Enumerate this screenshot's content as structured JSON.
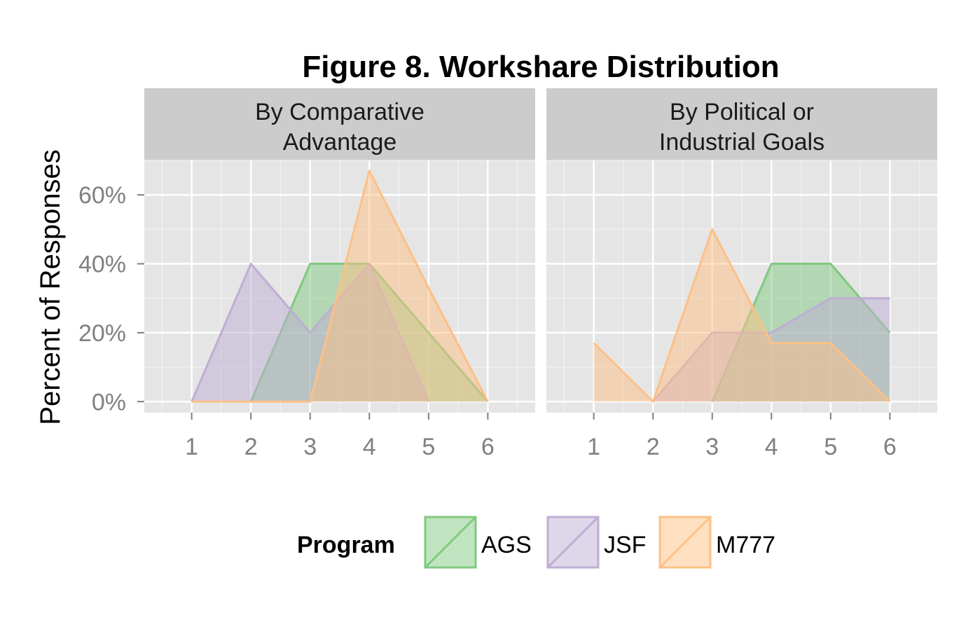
{
  "chart_data": {
    "type": "area",
    "title": "Figure 8. Workshare Distribution",
    "ylabel": "Percent of Responses",
    "xlabel": "",
    "x_ticks": [
      1,
      2,
      3,
      4,
      5,
      6
    ],
    "xlim": [
      0.2,
      6.8
    ],
    "ylim": [
      -3.2,
      70
    ],
    "y_ticks": [
      0,
      20,
      40,
      60
    ],
    "y_tick_labels": [
      "0%",
      "20%",
      "40%",
      "60%"
    ],
    "grid": true,
    "legend": {
      "title": "Program",
      "position": "bottom",
      "entries": [
        "AGS",
        "JSF",
        "M777"
      ]
    },
    "colors": {
      "AGS": "#7fc97f",
      "JSF": "#beaed4",
      "M777": "#fdc086",
      "panel_bg": "#e5e5e5",
      "strip_bg": "#cccccc",
      "grid_major": "#ffffff",
      "grid_minor": "#f2f2f2",
      "tick_label": "#808080"
    },
    "panels": [
      {
        "strip_lines": [
          "By Comparative",
          "Advantage"
        ],
        "series": [
          {
            "name": "JSF",
            "x": [
              1,
              2,
              3,
              4,
              5
            ],
            "y": [
              0,
              40,
              20,
              40,
              0
            ]
          },
          {
            "name": "AGS",
            "x": [
              2,
              3,
              4,
              5,
              6
            ],
            "y": [
              0,
              40,
              40,
              20,
              0
            ]
          },
          {
            "name": "M777",
            "x": [
              1,
              2,
              3,
              4,
              5,
              6
            ],
            "y": [
              0,
              0,
              0,
              67,
              33,
              0
            ]
          }
        ]
      },
      {
        "strip_lines": [
          "By Political or",
          "Industrial Goals"
        ],
        "series": [
          {
            "name": "AGS",
            "x": [
              3,
              4,
              5,
              6
            ],
            "y": [
              0,
              40,
              40,
              20
            ]
          },
          {
            "name": "JSF",
            "x": [
              2,
              3,
              4,
              5,
              6
            ],
            "y": [
              0,
              20,
              20,
              30,
              30
            ]
          },
          {
            "name": "M777",
            "x": [
              1,
              2,
              3,
              4,
              5,
              6
            ],
            "y": [
              17,
              0,
              50,
              17,
              17,
              0
            ]
          }
        ]
      }
    ]
  }
}
